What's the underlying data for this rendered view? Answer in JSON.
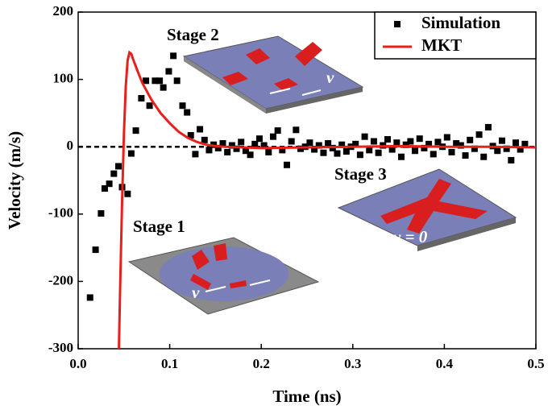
{
  "chart_data": {
    "type": "scatter",
    "x_label": "Time (ns)",
    "y_label": "Velocity (m/s)",
    "xlim": [
      0,
      0.5
    ],
    "ylim": [
      -300,
      200
    ],
    "xticks": [
      {
        "value": 0,
        "label": "0.0"
      },
      0.1,
      0.2,
      0.3,
      0.4,
      0.5
    ],
    "yticks": [
      -300,
      -200,
      -100,
      0,
      100,
      200
    ],
    "reference_line": {
      "value": 0,
      "color": "#000000",
      "style": "dashed"
    },
    "legend": "upper right",
    "series": [
      {
        "name": "Simulation",
        "style": "marker",
        "color": "#000000",
        "x": [
          0.013,
          0.019,
          0.025,
          0.029,
          0.034,
          0.039,
          0.044,
          0.048,
          0.054,
          0.058,
          0.063,
          0.069,
          0.074,
          0.078,
          0.084,
          0.089,
          0.093,
          0.099,
          0.104,
          0.108,
          0.114,
          0.119,
          0.123,
          0.128,
          0.133,
          0.138,
          0.143,
          0.148,
          0.153,
          0.158,
          0.163,
          0.168,
          0.173,
          0.178,
          0.183,
          0.188,
          0.193,
          0.198,
          0.203,
          0.208,
          0.213,
          0.218,
          0.223,
          0.228,
          0.233,
          0.238,
          0.243,
          0.248,
          0.253,
          0.258,
          0.263,
          0.268,
          0.273,
          0.278,
          0.283,
          0.288,
          0.293,
          0.298,
          0.303,
          0.308,
          0.313,
          0.318,
          0.323,
          0.328,
          0.333,
          0.338,
          0.343,
          0.348,
          0.353,
          0.358,
          0.363,
          0.368,
          0.373,
          0.378,
          0.383,
          0.388,
          0.393,
          0.398,
          0.403,
          0.408,
          0.413,
          0.418,
          0.423,
          0.428,
          0.433,
          0.438,
          0.443,
          0.448,
          0.453,
          0.458,
          0.463,
          0.468,
          0.473,
          0.478,
          0.483,
          0.488
        ],
        "values": [
          -224,
          -153,
          -99,
          -62,
          -55,
          -40,
          -29,
          -60,
          -70,
          -10,
          24,
          72,
          98,
          61,
          98,
          98,
          88,
          112,
          135,
          98,
          61,
          51,
          17,
          -11,
          26,
          10,
          -5,
          3,
          -2,
          5,
          -8,
          2,
          -3,
          7,
          -6,
          -12,
          4,
          12,
          2,
          -8,
          15,
          24,
          -5,
          -27,
          8,
          25,
          -3,
          0,
          6,
          -4,
          2,
          -9,
          5,
          -2,
          -10,
          3,
          -7,
          0,
          4,
          -12,
          15,
          -5,
          8,
          -9,
          2,
          11,
          -4,
          6,
          -15,
          3,
          8,
          -6,
          12,
          -2,
          4,
          -11,
          7,
          0,
          14,
          -8,
          5,
          2,
          -13,
          10,
          -3,
          18,
          -15,
          29,
          1,
          -6,
          9,
          -3,
          -20,
          6,
          -4,
          4
        ]
      },
      {
        "name": "MKT",
        "style": "line",
        "color": "#e8201c",
        "x": [
          0.0445,
          0.046,
          0.048,
          0.05,
          0.052,
          0.054,
          0.056,
          0.058,
          0.06,
          0.065,
          0.07,
          0.08,
          0.09,
          0.1,
          0.11,
          0.12,
          0.13,
          0.14,
          0.15,
          0.16,
          0.18,
          0.2,
          0.25,
          0.3,
          0.35,
          0.4,
          0.45,
          0.5
        ],
        "values": [
          -300,
          -200,
          -80,
          20,
          90,
          128,
          140,
          138,
          130,
          112,
          95,
          70,
          50,
          35,
          22,
          13,
          7,
          3,
          1,
          0,
          -1,
          -2,
          -1,
          0,
          1,
          0,
          0,
          -1
        ]
      }
    ],
    "annotations": [
      "Stage 1",
      "Stage 2",
      "Stage 3",
      "ν",
      "ν",
      "ν = 0"
    ]
  }
}
